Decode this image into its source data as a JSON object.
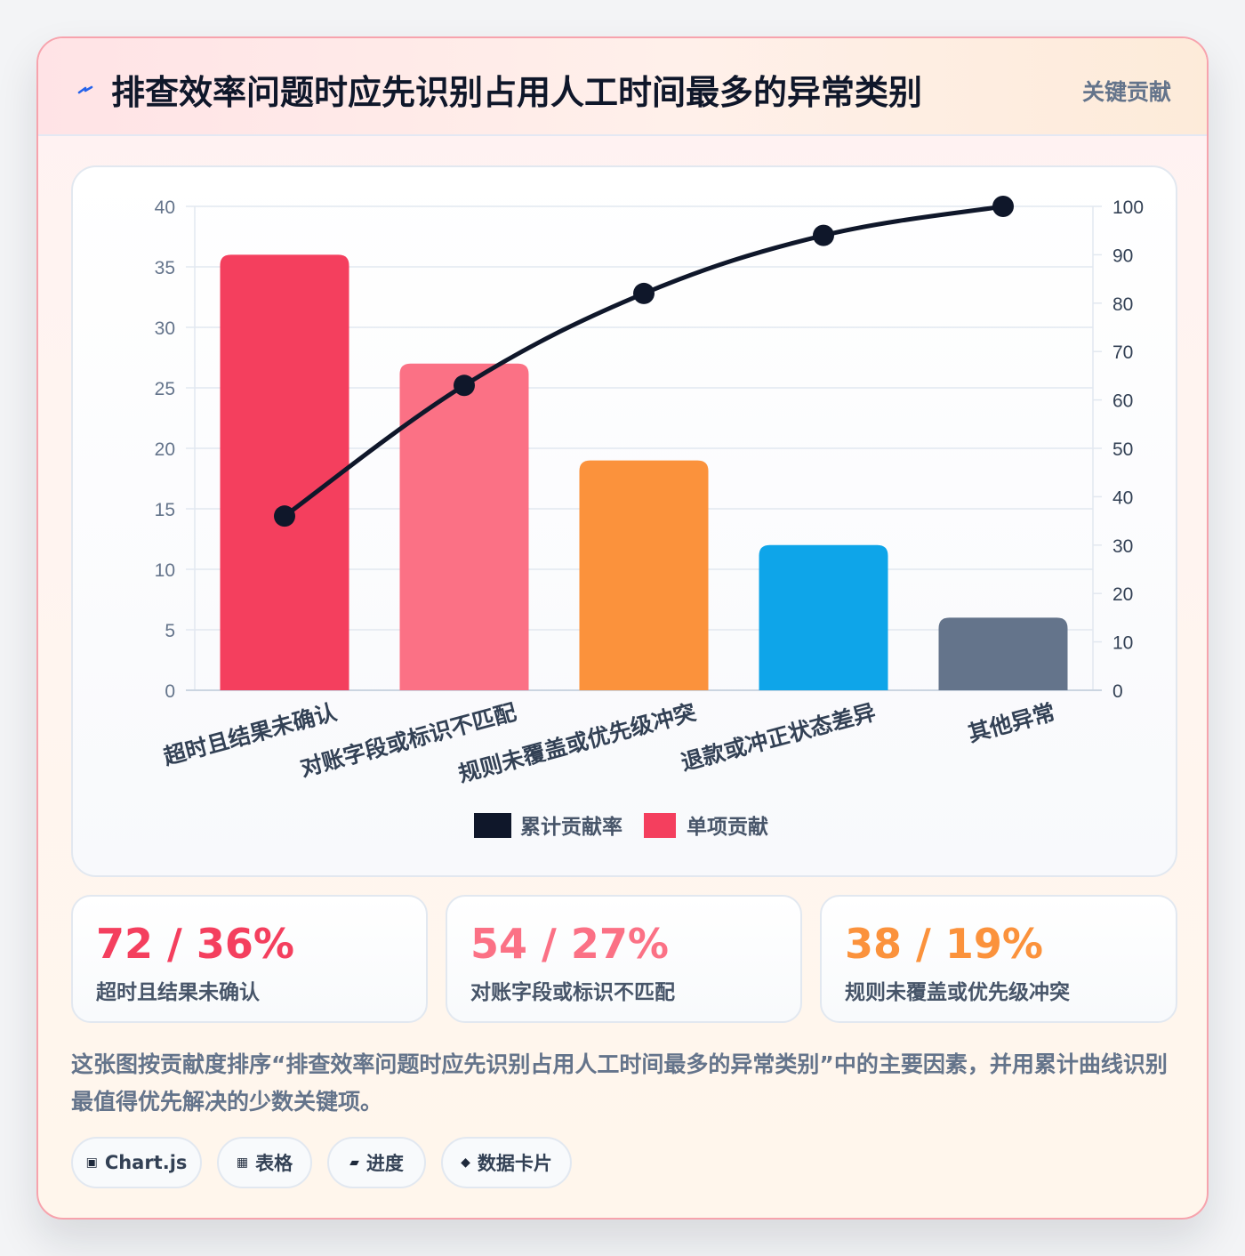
{
  "header": {
    "title": "排查效率问题时应先识别占用人工时间最多的异常类别",
    "tag": "关键贡献",
    "icon": "bolt-icon"
  },
  "chart_data": {
    "type": "bar",
    "categories": [
      "超时且结果未确认",
      "对账字段或标识不匹配",
      "规则未覆盖或优先级冲突",
      "退款或冲正状态差异",
      "其他异常"
    ],
    "series": [
      {
        "name": "单项贡献",
        "type": "bar",
        "axis": "left",
        "values": [
          36,
          27,
          19,
          12,
          6
        ],
        "colors": [
          "#f43f5e",
          "#fb7185",
          "#fb923c",
          "#0ea5e9",
          "#64748b"
        ]
      },
      {
        "name": "累计贡献率",
        "type": "line",
        "axis": "right",
        "values": [
          36,
          63,
          82,
          94,
          100
        ],
        "color": "#0f172a"
      }
    ],
    "ylim_left": [
      0,
      40
    ],
    "ylim_right": [
      0,
      100
    ],
    "yticks_left": [
      "0",
      "5",
      "10",
      "15",
      "20",
      "25",
      "30",
      "35",
      "40"
    ],
    "yticks_right": [
      "0",
      "10",
      "20",
      "30",
      "40",
      "50",
      "60",
      "70",
      "80",
      "90",
      "100"
    ],
    "grid": true,
    "legend_position": "bottom"
  },
  "stats": [
    {
      "value": "72 / 36%",
      "label": "超时且结果未确认",
      "color": "#f43f5e"
    },
    {
      "value": "54 / 27%",
      "label": "对账字段或标识不匹配",
      "color": "#fb7185"
    },
    {
      "value": "38 / 19%",
      "label": "规则未覆盖或优先级冲突",
      "color": "#fb923c"
    }
  ],
  "description": "这张图按贡献度排序“排查效率问题时应先识别占用人工时间最多的异常类别”中的主要因素，并用累计曲线识别最值得优先解决的少数关键项。",
  "chips": [
    {
      "icon": "▣",
      "label": "Chart.js"
    },
    {
      "icon": "▦",
      "label": "表格"
    },
    {
      "icon": "▰",
      "label": "进度"
    },
    {
      "icon": "◆",
      "label": "数据卡片"
    }
  ]
}
